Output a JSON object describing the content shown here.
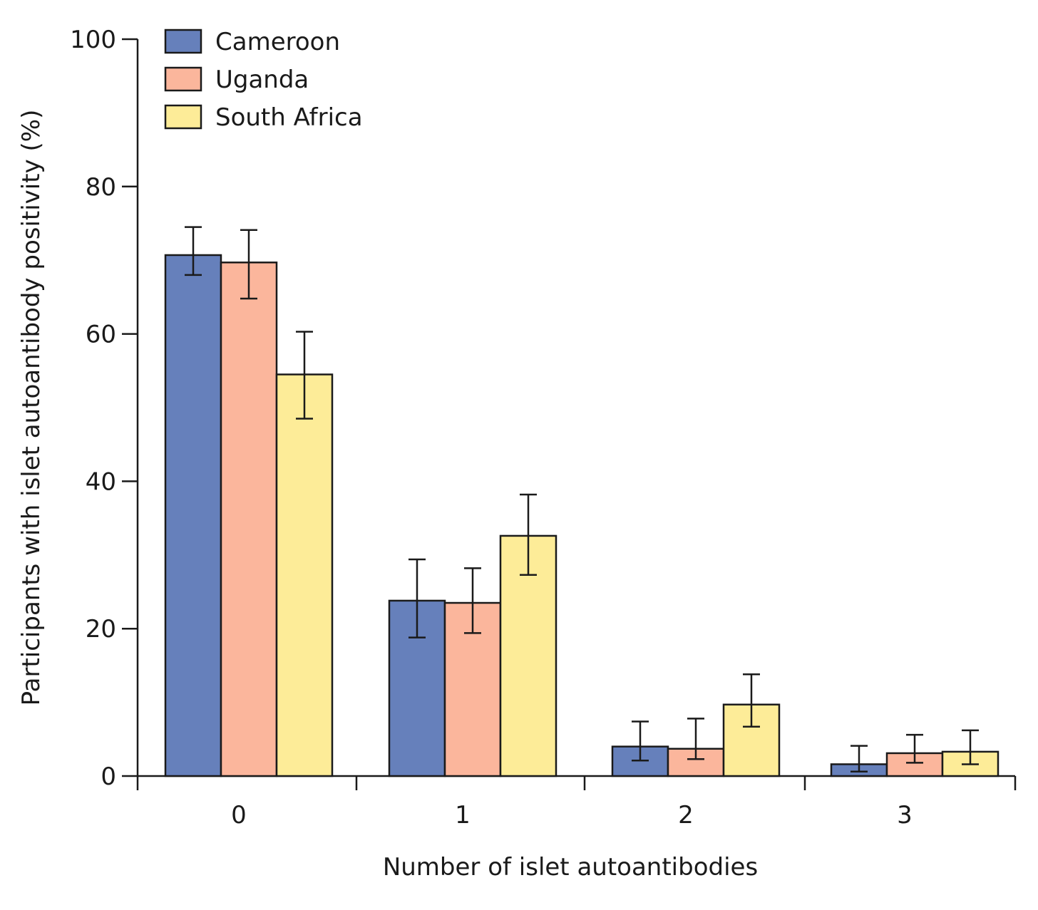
{
  "chart_data": {
    "type": "bar",
    "title": "",
    "xlabel": "Number of islet autoantibodies",
    "ylabel": "Participants with islet autoantibody positivity (%)",
    "categories": [
      "0",
      "1",
      "2",
      "3"
    ],
    "ylim": [
      0,
      100
    ],
    "yticks": [
      "0",
      "20",
      "40",
      "60",
      "80",
      "100"
    ],
    "legend_position": "top-left",
    "series": [
      {
        "name": "Cameroon",
        "color": "#6680bb",
        "values": [
          70.7,
          23.8,
          4.0,
          1.6
        ],
        "error_low": [
          68.0,
          18.8,
          2.1,
          0.6
        ],
        "error_high": [
          74.5,
          29.4,
          7.4,
          4.1
        ]
      },
      {
        "name": "Uganda",
        "color": "#fbb69c",
        "values": [
          69.7,
          23.5,
          3.7,
          3.1
        ],
        "error_low": [
          64.8,
          19.4,
          2.3,
          1.8
        ],
        "error_high": [
          74.1,
          28.2,
          7.8,
          5.6
        ]
      },
      {
        "name": "South Africa",
        "color": "#fdec98",
        "values": [
          54.5,
          32.6,
          9.7,
          3.3
        ],
        "error_low": [
          48.5,
          27.3,
          6.7,
          1.6
        ],
        "error_high": [
          60.3,
          38.2,
          13.8,
          6.2
        ]
      }
    ]
  }
}
